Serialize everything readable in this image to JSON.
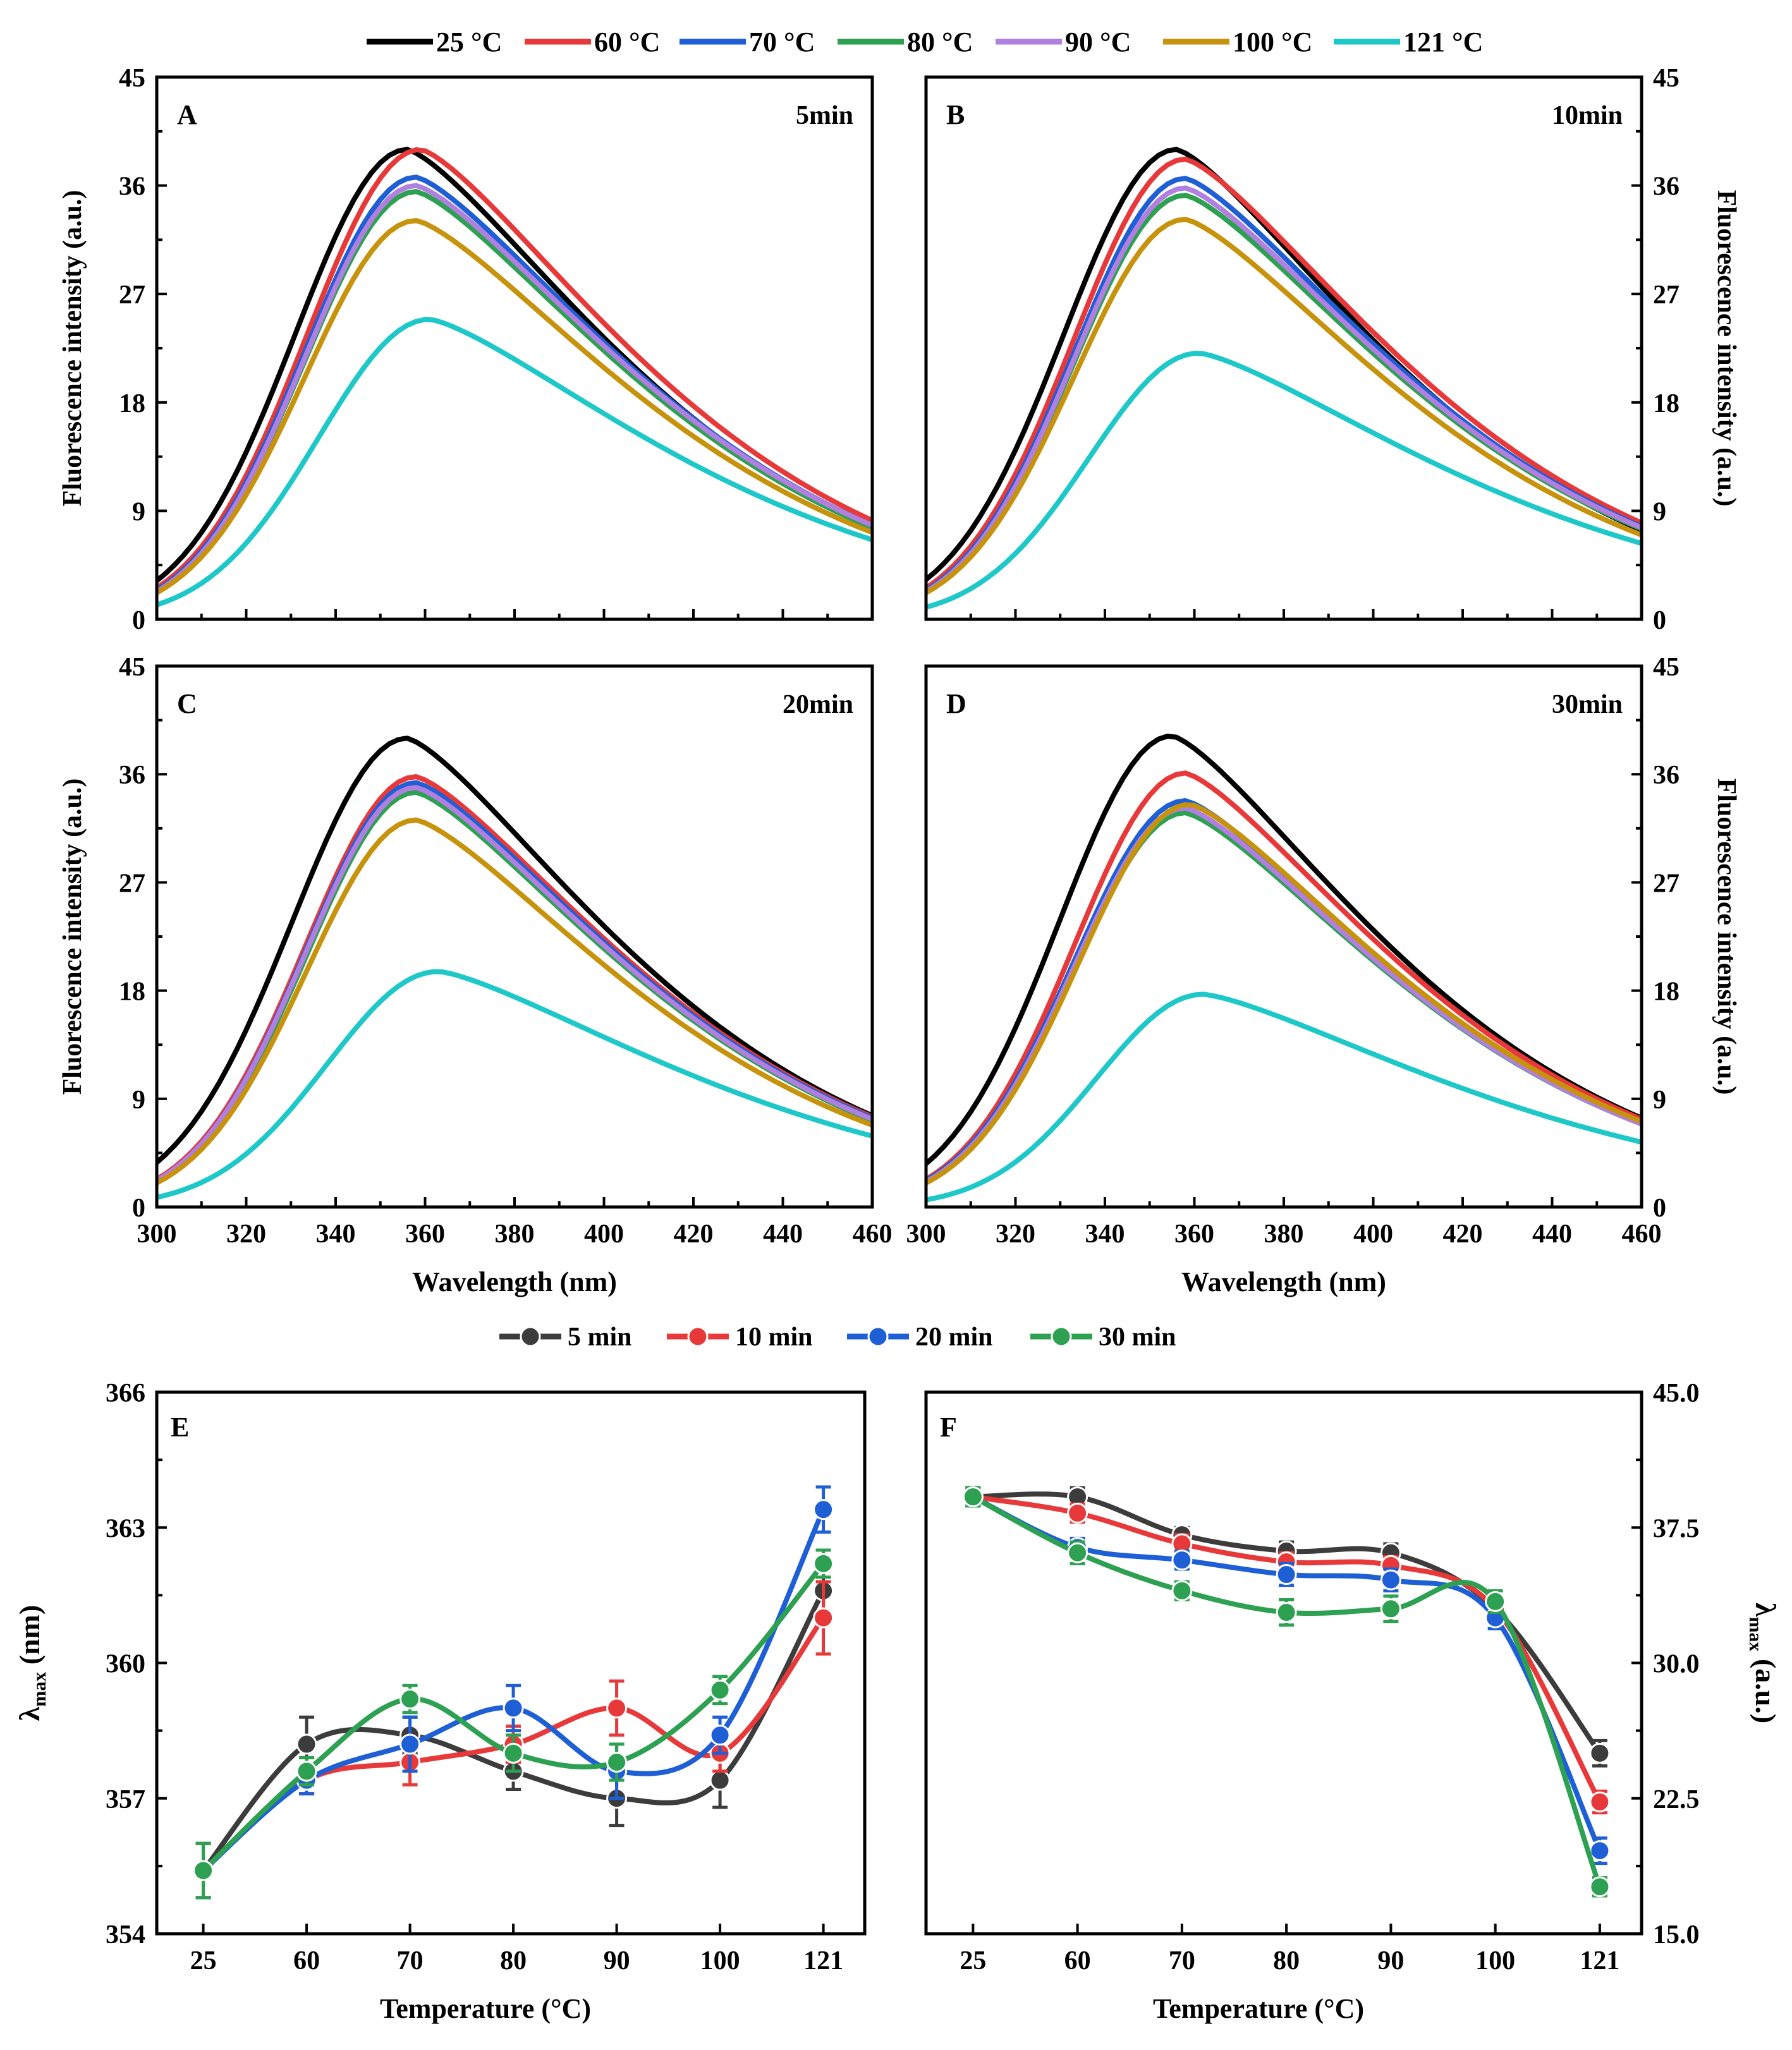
{
  "figure": {
    "legend_top": [
      {
        "label": "25 °C",
        "color": "#000000"
      },
      {
        "label": "60 °C",
        "color": "#e8393a"
      },
      {
        "label": "70 °C",
        "color": "#1f5fd6"
      },
      {
        "label": "80 °C",
        "color": "#2da052"
      },
      {
        "label": "90 °C",
        "color": "#b07fe0"
      },
      {
        "label": "100 °C",
        "color": "#c7920c"
      },
      {
        "label": "121 °C",
        "color": "#1ec8c8"
      }
    ],
    "legend_mid": [
      {
        "label": "5 min",
        "color": "#3c3c3c"
      },
      {
        "label": "10 min",
        "color": "#e8393a"
      },
      {
        "label": "20 min",
        "color": "#1f5fd6"
      },
      {
        "label": "30 min",
        "color": "#2da052"
      }
    ]
  },
  "chart_data": [
    {
      "type": "line",
      "panel": "A",
      "annotation": "5min",
      "title": "",
      "xlabel": "",
      "ylabel": "Fluorescence intensity (a.u.)",
      "xlim": [
        300,
        460
      ],
      "ylim": [
        0,
        45
      ],
      "yticks": [
        "0",
        "9",
        "18",
        "27",
        "36",
        "45"
      ],
      "series": [
        {
          "name": "25 °C",
          "peak_x": 356,
          "peak_y": 39,
          "start_y": 3.2,
          "end_y": 7.6
        },
        {
          "name": "60 °C",
          "peak_x": 359,
          "peak_y": 39,
          "start_y": 2.6,
          "end_y": 8.2
        },
        {
          "name": "70 °C",
          "peak_x": 358,
          "peak_y": 36.7,
          "start_y": 2.4,
          "end_y": 7.8
        },
        {
          "name": "80 °C",
          "peak_x": 358,
          "peak_y": 35.5,
          "start_y": 2.3,
          "end_y": 7.6
        },
        {
          "name": "90 °C",
          "peak_x": 358,
          "peak_y": 36,
          "start_y": 2.3,
          "end_y": 7.8
        },
        {
          "name": "100 °C",
          "peak_x": 358,
          "peak_y": 33.1,
          "start_y": 2.2,
          "end_y": 7.2
        },
        {
          "name": "121 °C",
          "peak_x": 361,
          "peak_y": 24.9,
          "start_y": 1.2,
          "end_y": 6.6
        }
      ]
    },
    {
      "type": "line",
      "panel": "B",
      "annotation": "10min",
      "title": "",
      "xlabel": "",
      "ylabel": "Fluorescence intensity (a.u.)",
      "xlim": [
        300,
        460
      ],
      "ylim": [
        0,
        45
      ],
      "yticks": [
        "0",
        "9",
        "18",
        "27",
        "36",
        "45"
      ],
      "series": [
        {
          "name": "25 °C",
          "peak_x": 356,
          "peak_y": 39,
          "start_y": 3.3,
          "end_y": 7.4
        },
        {
          "name": "60 °C",
          "peak_x": 358,
          "peak_y": 38.2,
          "start_y": 2.6,
          "end_y": 8.0
        },
        {
          "name": "70 °C",
          "peak_x": 358,
          "peak_y": 36.6,
          "start_y": 2.4,
          "end_y": 7.7
        },
        {
          "name": "80 °C",
          "peak_x": 358,
          "peak_y": 35.2,
          "start_y": 2.3,
          "end_y": 7.5
        },
        {
          "name": "90 °C",
          "peak_x": 358,
          "peak_y": 35.8,
          "start_y": 2.3,
          "end_y": 7.6
        },
        {
          "name": "100 °C",
          "peak_x": 358,
          "peak_y": 33.2,
          "start_y": 2.2,
          "end_y": 7.0
        },
        {
          "name": "121 °C",
          "peak_x": 361,
          "peak_y": 22.1,
          "start_y": 1.0,
          "end_y": 6.3
        }
      ]
    },
    {
      "type": "line",
      "panel": "C",
      "annotation": "20min",
      "title": "",
      "xlabel": "Wavelength (nm)",
      "ylabel": "Fluorescence intensity (a.u.)",
      "xlim": [
        300,
        460
      ],
      "ylim": [
        0,
        45
      ],
      "xticks": [
        "300",
        "320",
        "340",
        "360",
        "380",
        "400",
        "420",
        "440",
        "460"
      ],
      "yticks": [
        "0",
        "9",
        "18",
        "27",
        "36",
        "45"
      ],
      "series": [
        {
          "name": "25 °C",
          "peak_x": 356,
          "peak_y": 39,
          "start_y": 3.7,
          "end_y": 7.6
        },
        {
          "name": "60 °C",
          "peak_x": 358,
          "peak_y": 35.8,
          "start_y": 2.3,
          "end_y": 7.5
        },
        {
          "name": "70 °C",
          "peak_x": 358,
          "peak_y": 35.3,
          "start_y": 2.2,
          "end_y": 7.4
        },
        {
          "name": "80 °C",
          "peak_x": 358,
          "peak_y": 34.5,
          "start_y": 2.1,
          "end_y": 7.2
        },
        {
          "name": "90 °C",
          "peak_x": 358,
          "peak_y": 34.9,
          "start_y": 2.2,
          "end_y": 7.3
        },
        {
          "name": "100 °C",
          "peak_x": 358,
          "peak_y": 32.2,
          "start_y": 2.0,
          "end_y": 6.8
        },
        {
          "name": "121 °C",
          "peak_x": 363,
          "peak_y": 19.6,
          "start_y": 0.8,
          "end_y": 5.9
        }
      ]
    },
    {
      "type": "line",
      "panel": "D",
      "annotation": "30min",
      "title": "",
      "xlabel": "Wavelength (nm)",
      "ylabel": "Fluorescence intensity (a.u.)",
      "xlim": [
        300,
        460
      ],
      "ylim": [
        0,
        45
      ],
      "xticks": [
        "300",
        "320",
        "340",
        "360",
        "380",
        "400",
        "420",
        "440",
        "460"
      ],
      "yticks": [
        "0",
        "9",
        "18",
        "27",
        "36",
        "45"
      ],
      "series": [
        {
          "name": "25 °C",
          "peak_x": 355,
          "peak_y": 39.2,
          "start_y": 3.6,
          "end_y": 7.4
        },
        {
          "name": "60 °C",
          "peak_x": 358,
          "peak_y": 36.1,
          "start_y": 2.3,
          "end_y": 7.3
        },
        {
          "name": "70 °C",
          "peak_x": 358,
          "peak_y": 33.8,
          "start_y": 2.2,
          "end_y": 7.0
        },
        {
          "name": "80 °C",
          "peak_x": 358,
          "peak_y": 32.8,
          "start_y": 2.1,
          "end_y": 6.9
        },
        {
          "name": "90 °C",
          "peak_x": 358,
          "peak_y": 33.2,
          "start_y": 2.1,
          "end_y": 6.9
        },
        {
          "name": "100 °C",
          "peak_x": 359,
          "peak_y": 33.5,
          "start_y": 2.0,
          "end_y": 7.1
        },
        {
          "name": "121 °C",
          "peak_x": 362,
          "peak_y": 17.7,
          "start_y": 0.6,
          "end_y": 5.4
        }
      ]
    },
    {
      "type": "line",
      "panel": "E",
      "annotation": "",
      "title": "",
      "xlabel": "Temperature (°C)",
      "ylabel": "λmax (nm)",
      "ylabel_main": "λ",
      "ylabel_sub": "max",
      "ylabel_suffix": " (nm)",
      "categories": [
        "25",
        "60",
        "70",
        "80",
        "90",
        "100",
        "121"
      ],
      "ylim": [
        354,
        366
      ],
      "yticks": [
        "354",
        "357",
        "360",
        "363",
        "366"
      ],
      "series": [
        {
          "name": "5 min",
          "values": [
            355.4,
            358.2,
            358.4,
            357.6,
            357.0,
            357.4,
            361.6
          ],
          "errors": [
            0.6,
            0.6,
            0.4,
            0.4,
            0.6,
            0.6,
            0.7
          ]
        },
        {
          "name": "10 min",
          "values": [
            355.4,
            357.4,
            357.8,
            358.2,
            359.0,
            358.0,
            361.0
          ],
          "errors": [
            0.6,
            0.3,
            0.5,
            0.4,
            0.6,
            0.4,
            0.8
          ]
        },
        {
          "name": "20 min",
          "values": [
            355.4,
            357.4,
            358.2,
            359.0,
            357.6,
            358.4,
            363.4
          ],
          "errors": [
            0.6,
            0.3,
            0.6,
            0.5,
            0.6,
            0.4,
            0.5
          ]
        },
        {
          "name": "30 min",
          "values": [
            355.4,
            357.6,
            359.2,
            358.0,
            357.8,
            359.4,
            362.2
          ],
          "errors": [
            0.6,
            0.3,
            0.3,
            0.4,
            0.4,
            0.3,
            0.3
          ]
        }
      ]
    },
    {
      "type": "line",
      "panel": "F",
      "annotation": "",
      "title": "",
      "xlabel": "Temperature (°C)",
      "ylabel": "λmax (a.u.)",
      "ylabel_main": "λ",
      "ylabel_sub": "max",
      "ylabel_suffix": " (a.u.)",
      "categories": [
        "25",
        "60",
        "70",
        "80",
        "90",
        "100",
        "121"
      ],
      "ylim": [
        15,
        45
      ],
      "yticks": [
        "15.0",
        "22.5",
        "30.0",
        "37.5",
        "45.0"
      ],
      "series": [
        {
          "name": "5 min",
          "values": [
            39.2,
            39.2,
            37.1,
            36.2,
            36.1,
            33.0,
            25.0
          ],
          "errors": [
            0.5,
            0.5,
            0.4,
            0.5,
            0.5,
            0.6,
            0.7
          ]
        },
        {
          "name": "10 min",
          "values": [
            39.2,
            38.3,
            36.6,
            35.6,
            35.4,
            33.0,
            22.3
          ],
          "errors": [
            0.5,
            0.5,
            0.5,
            0.5,
            0.5,
            0.6,
            0.6
          ]
        },
        {
          "name": "20 min",
          "values": [
            39.2,
            36.4,
            35.7,
            34.9,
            34.6,
            32.5,
            19.6
          ],
          "errors": [
            0.5,
            0.5,
            0.5,
            0.6,
            0.6,
            0.6,
            0.7
          ]
        },
        {
          "name": "30 min",
          "values": [
            39.2,
            36.1,
            34.0,
            32.8,
            33.0,
            33.4,
            17.6
          ],
          "errors": [
            0.5,
            0.6,
            0.5,
            0.7,
            0.7,
            0.6,
            0.5
          ]
        }
      ]
    }
  ]
}
